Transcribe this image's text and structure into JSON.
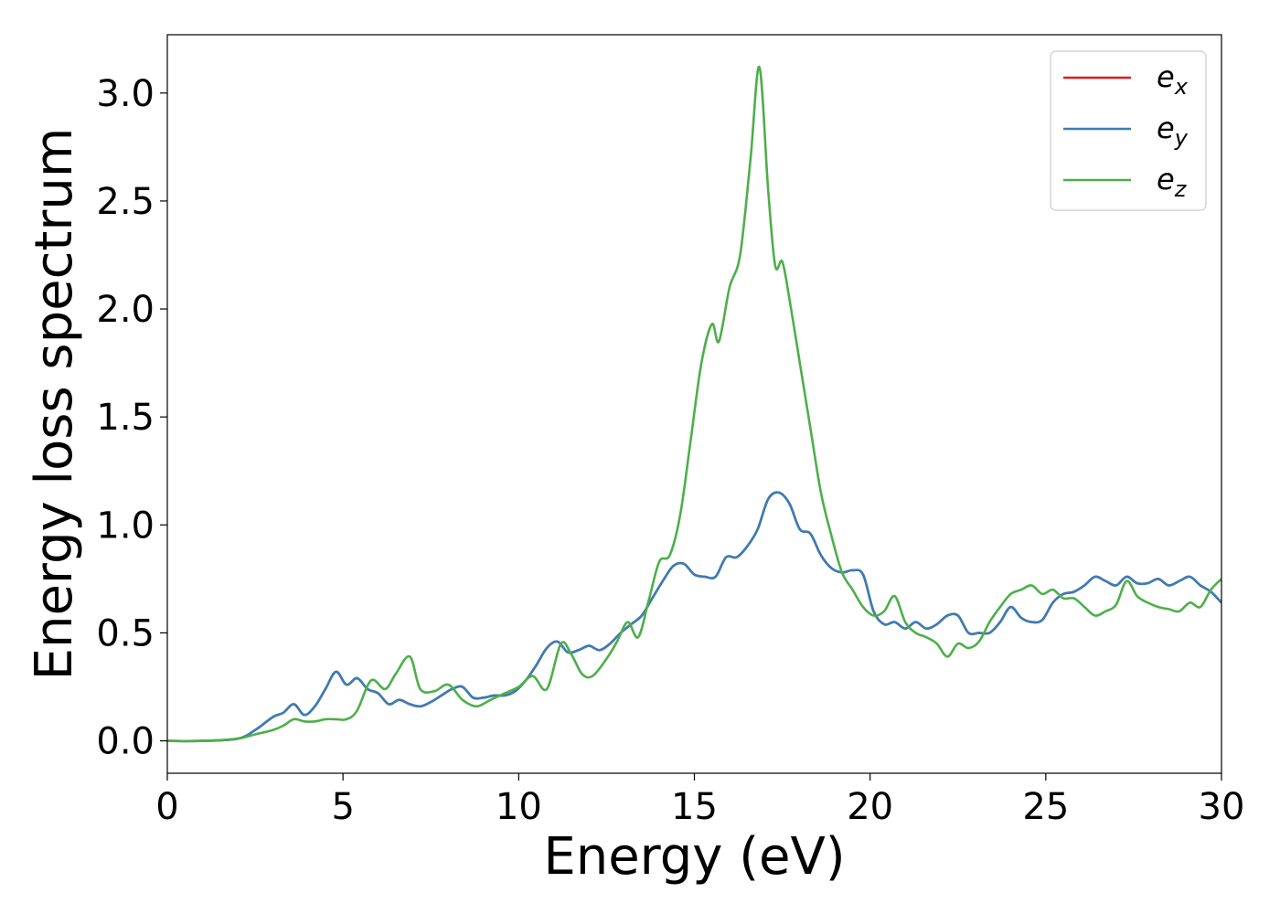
{
  "chart_data": {
    "type": "line",
    "xlabel": "Energy (eV)",
    "ylabel": "Energy loss spectrum",
    "xlim": [
      0,
      30
    ],
    "ylim": [
      -0.15,
      3.27
    ],
    "xticks": [
      "0",
      "5",
      "10",
      "15",
      "20",
      "25",
      "30"
    ],
    "yticks": [
      "0.0",
      "0.5",
      "1.0",
      "1.5",
      "2.0",
      "2.5",
      "3.0"
    ],
    "grid": false,
    "legend_position": "top-right",
    "colors": {
      "ex": "#e41a1c",
      "ey": "#377eb8",
      "ez": "#4daf4a"
    },
    "series": [
      {
        "key": "ex",
        "name_base": "e",
        "name_sub": "x",
        "x": [
          0,
          1,
          2,
          2.5,
          3,
          3.3,
          3.6,
          3.9,
          4.2,
          4.5,
          4.8,
          5.1,
          5.4,
          5.7,
          6,
          6.3,
          6.6,
          6.9,
          7.2,
          7.5,
          7.8,
          8.1,
          8.4,
          8.7,
          9,
          9.3,
          9.6,
          9.9,
          10.2,
          10.5,
          10.8,
          11.1,
          11.4,
          11.7,
          12,
          12.3,
          12.6,
          12.9,
          13.2,
          13.5,
          13.8,
          14.1,
          14.4,
          14.7,
          15,
          15.3,
          15.6,
          15.9,
          16.2,
          16.5,
          16.8,
          17.1,
          17.4,
          17.7,
          18,
          18.3,
          18.6,
          18.9,
          19.2,
          19.5,
          19.8,
          20.1,
          20.4,
          20.7,
          21,
          21.3,
          21.6,
          21.9,
          22.2,
          22.5,
          22.8,
          23.1,
          23.4,
          23.7,
          24,
          24.3,
          24.6,
          24.9,
          25.2,
          25.5,
          25.8,
          26.1,
          26.4,
          26.7,
          27,
          27.3,
          27.6,
          27.9,
          28.2,
          28.5,
          28.8,
          29.1,
          29.4,
          29.7,
          30
        ],
        "y": [
          0,
          0,
          0.01,
          0.05,
          0.11,
          0.13,
          0.17,
          0.12,
          0.16,
          0.24,
          0.32,
          0.26,
          0.29,
          0.24,
          0.22,
          0.17,
          0.19,
          0.17,
          0.16,
          0.18,
          0.21,
          0.24,
          0.25,
          0.2,
          0.2,
          0.21,
          0.21,
          0.23,
          0.28,
          0.35,
          0.43,
          0.46,
          0.41,
          0.42,
          0.44,
          0.42,
          0.45,
          0.5,
          0.54,
          0.58,
          0.66,
          0.74,
          0.81,
          0.82,
          0.77,
          0.76,
          0.76,
          0.85,
          0.85,
          0.9,
          0.98,
          1.12,
          1.15,
          1.1,
          0.98,
          0.96,
          0.86,
          0.8,
          0.78,
          0.79,
          0.77,
          0.6,
          0.54,
          0.55,
          0.52,
          0.55,
          0.52,
          0.54,
          0.58,
          0.58,
          0.5,
          0.5,
          0.5,
          0.55,
          0.62,
          0.57,
          0.55,
          0.56,
          0.64,
          0.68,
          0.69,
          0.72,
          0.76,
          0.74,
          0.72,
          0.76,
          0.73,
          0.73,
          0.75,
          0.72,
          0.74,
          0.76,
          0.72,
          0.69,
          0.64
        ]
      },
      {
        "key": "ey",
        "name_base": "e",
        "name_sub": "y",
        "x": [
          0,
          1,
          2,
          2.5,
          3,
          3.3,
          3.6,
          3.9,
          4.2,
          4.5,
          4.8,
          5.1,
          5.4,
          5.7,
          6,
          6.3,
          6.6,
          6.9,
          7.2,
          7.5,
          7.8,
          8.1,
          8.4,
          8.7,
          9,
          9.3,
          9.6,
          9.9,
          10.2,
          10.5,
          10.8,
          11.1,
          11.4,
          11.7,
          12,
          12.3,
          12.6,
          12.9,
          13.2,
          13.5,
          13.8,
          14.1,
          14.4,
          14.7,
          15,
          15.3,
          15.6,
          15.9,
          16.2,
          16.5,
          16.8,
          17.1,
          17.4,
          17.7,
          18,
          18.3,
          18.6,
          18.9,
          19.2,
          19.5,
          19.8,
          20.1,
          20.4,
          20.7,
          21,
          21.3,
          21.6,
          21.9,
          22.2,
          22.5,
          22.8,
          23.1,
          23.4,
          23.7,
          24,
          24.3,
          24.6,
          24.9,
          25.2,
          25.5,
          25.8,
          26.1,
          26.4,
          26.7,
          27,
          27.3,
          27.6,
          27.9,
          28.2,
          28.5,
          28.8,
          29.1,
          29.4,
          29.7,
          30
        ],
        "y": [
          0,
          0,
          0.01,
          0.05,
          0.11,
          0.13,
          0.17,
          0.12,
          0.16,
          0.24,
          0.32,
          0.26,
          0.29,
          0.24,
          0.22,
          0.17,
          0.19,
          0.17,
          0.16,
          0.18,
          0.21,
          0.24,
          0.25,
          0.2,
          0.2,
          0.21,
          0.21,
          0.23,
          0.28,
          0.35,
          0.43,
          0.46,
          0.41,
          0.42,
          0.44,
          0.42,
          0.45,
          0.5,
          0.54,
          0.58,
          0.66,
          0.74,
          0.81,
          0.82,
          0.77,
          0.76,
          0.76,
          0.85,
          0.85,
          0.9,
          0.98,
          1.12,
          1.15,
          1.1,
          0.98,
          0.96,
          0.86,
          0.8,
          0.78,
          0.79,
          0.77,
          0.6,
          0.54,
          0.55,
          0.52,
          0.55,
          0.52,
          0.54,
          0.58,
          0.58,
          0.5,
          0.5,
          0.5,
          0.55,
          0.62,
          0.57,
          0.55,
          0.56,
          0.64,
          0.68,
          0.69,
          0.72,
          0.76,
          0.74,
          0.72,
          0.76,
          0.73,
          0.73,
          0.75,
          0.72,
          0.74,
          0.76,
          0.72,
          0.69,
          0.64
        ]
      },
      {
        "key": "ez",
        "name_base": "e",
        "name_sub": "z",
        "x": [
          0,
          1,
          2,
          2.5,
          3,
          3.3,
          3.6,
          3.9,
          4.2,
          4.5,
          4.8,
          5.1,
          5.4,
          5.8,
          6.2,
          6.5,
          6.9,
          7.2,
          7.6,
          8,
          8.4,
          8.8,
          9.2,
          9.6,
          10,
          10.4,
          10.8,
          11.2,
          11.5,
          11.8,
          12.1,
          12.5,
          12.8,
          13.1,
          13.4,
          13.7,
          14,
          14.3,
          14.6,
          14.9,
          15.2,
          15.5,
          15.7,
          16,
          16.3,
          16.6,
          16.85,
          17.1,
          17.3,
          17.5,
          17.7,
          18,
          18.3,
          18.6,
          18.9,
          19.2,
          19.5,
          19.8,
          20.1,
          20.4,
          20.7,
          21,
          21.3,
          21.6,
          21.9,
          22.2,
          22.5,
          22.8,
          23.1,
          23.4,
          23.7,
          24,
          24.3,
          24.6,
          24.9,
          25.2,
          25.5,
          25.8,
          26.1,
          26.4,
          26.7,
          27,
          27.3,
          27.6,
          27.9,
          28.2,
          28.5,
          28.8,
          29.1,
          29.4,
          29.7,
          30
        ],
        "y": [
          0,
          0,
          0.01,
          0.03,
          0.05,
          0.07,
          0.1,
          0.09,
          0.09,
          0.1,
          0.1,
          0.1,
          0.14,
          0.28,
          0.24,
          0.31,
          0.39,
          0.24,
          0.23,
          0.26,
          0.19,
          0.16,
          0.19,
          0.22,
          0.25,
          0.3,
          0.24,
          0.45,
          0.4,
          0.31,
          0.3,
          0.38,
          0.46,
          0.55,
          0.48,
          0.65,
          0.83,
          0.86,
          1.05,
          1.4,
          1.75,
          1.93,
          1.85,
          2.1,
          2.25,
          2.7,
          3.12,
          2.55,
          2.2,
          2.22,
          2.05,
          1.75,
          1.45,
          1.15,
          0.95,
          0.78,
          0.7,
          0.62,
          0.58,
          0.6,
          0.67,
          0.55,
          0.5,
          0.48,
          0.45,
          0.39,
          0.45,
          0.43,
          0.46,
          0.55,
          0.62,
          0.68,
          0.7,
          0.72,
          0.68,
          0.7,
          0.66,
          0.66,
          0.62,
          0.58,
          0.6,
          0.63,
          0.74,
          0.67,
          0.64,
          0.62,
          0.61,
          0.6,
          0.64,
          0.62,
          0.7,
          0.75
        ]
      }
    ]
  }
}
